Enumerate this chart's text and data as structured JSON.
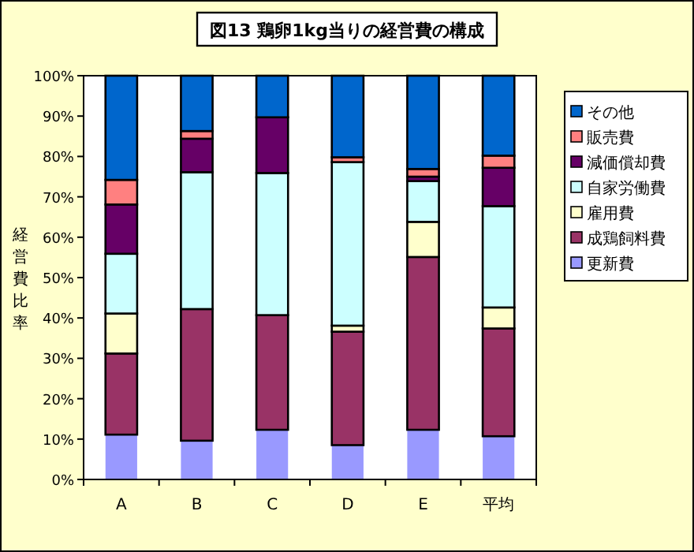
{
  "chart_data": {
    "type": "bar",
    "stacked": true,
    "title": "図13  鶏卵1kg当りの経営費の構成",
    "ylabel": "経営費比率",
    "legend": "right",
    "categories": [
      "A",
      "B",
      "C",
      "D",
      "E",
      "平均"
    ],
    "ylim": [
      0,
      100
    ],
    "yticks": [
      {
        "value": 0,
        "label": "0%"
      },
      {
        "value": 10,
        "label": "10%"
      },
      {
        "value": 20,
        "label": "20%"
      },
      {
        "value": 30,
        "label": "30%"
      },
      {
        "value": 40,
        "label": "40%"
      },
      {
        "value": 50,
        "label": "50%"
      },
      {
        "value": 60,
        "label": "60%"
      },
      {
        "value": 70,
        "label": "70%"
      },
      {
        "value": 80,
        "label": "80%"
      },
      {
        "value": 90,
        "label": "90%"
      },
      {
        "value": 100,
        "label": "100%"
      }
    ],
    "series": [
      {
        "name": "更新費",
        "color": "#9999ff",
        "values": [
          11.1,
          9.6,
          12.3,
          8.5,
          12.3,
          10.7
        ]
      },
      {
        "name": "成鶏飼料費",
        "color": "#993366",
        "values": [
          20.1,
          32.6,
          28.4,
          28.1,
          42.8,
          26.7
        ]
      },
      {
        "name": "雇用費",
        "color": "#ffffcc",
        "values": [
          9.9,
          null,
          null,
          1.5,
          8.7,
          5.2
        ]
      },
      {
        "name": "自家労働費",
        "color": "#ccffff",
        "values": [
          14.8,
          33.9,
          35.2,
          40.5,
          10.1,
          25.1
        ]
      },
      {
        "name": "減価償却費",
        "color": "#660066",
        "values": [
          12.2,
          8.3,
          13.8,
          null,
          1.1,
          9.5
        ]
      },
      {
        "name": "販売費",
        "color": "#ff8080",
        "values": [
          6.1,
          1.9,
          null,
          1.2,
          1.9,
          3.0
        ]
      },
      {
        "name": "その他",
        "color": "#0066cc",
        "values": [
          25.8,
          13.7,
          10.3,
          20.2,
          23.1,
          19.8
        ]
      }
    ]
  }
}
